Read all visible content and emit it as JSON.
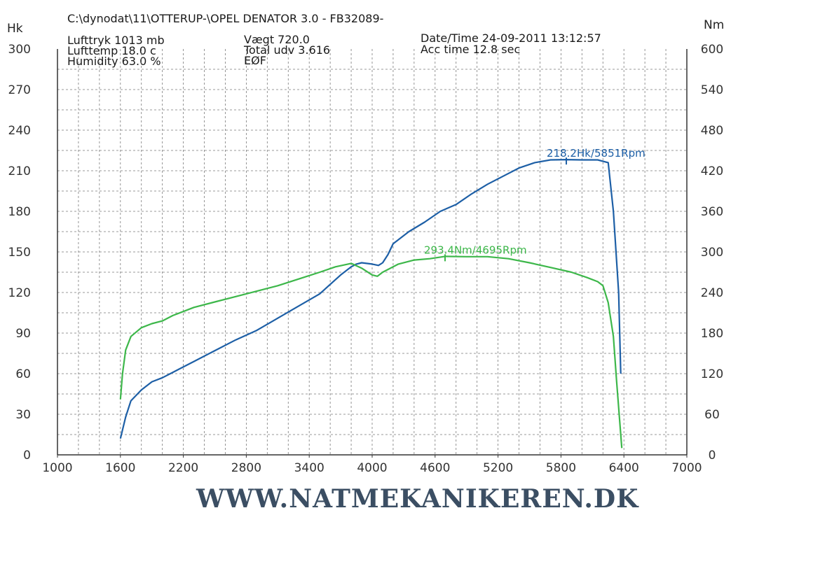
{
  "header": {
    "file_path": "C:\\dynodat\\11\\OTTERUP-\\OPEL DENATOR 3.0 - FB32089-",
    "lufttryk": "Lufttryk 1013 mb",
    "lufttemp": "Lufttemp 18.0 c",
    "humidity": "Humidity 63.0 %",
    "vaegt": "Vægt 720.0",
    "total_udv": "Total udv 3.616",
    "eof": "EØF",
    "datetime": "Date/Time 24-09-2011 13:12:57",
    "acc_time": "Acc time 12.8 sec"
  },
  "footer": {
    "website": "WWW.NATMEKANIKEREN.DK"
  },
  "chart_data": {
    "type": "line",
    "x_ticks": [
      1000,
      1600,
      2200,
      2800,
      3400,
      4000,
      4600,
      5200,
      5800,
      6400,
      7000
    ],
    "xlim": [
      1000,
      7000
    ],
    "grid": true,
    "y_left": {
      "label": "Hk",
      "ticks": [
        0,
        30,
        60,
        90,
        120,
        150,
        180,
        210,
        240,
        270,
        300
      ],
      "lim": [
        0,
        300
      ]
    },
    "y_right": {
      "label": "Nm",
      "ticks": [
        0,
        60,
        120,
        180,
        240,
        300,
        360,
        420,
        480,
        540,
        600
      ],
      "lim": [
        0,
        600
      ]
    },
    "series": [
      {
        "axis": "left",
        "color": "#1d5fa6",
        "peak_label": "218.2Hk/5851Rpm",
        "peak": {
          "x": 5851,
          "y": 218.2
        },
        "points": [
          [
            1600,
            12
          ],
          [
            1650,
            28
          ],
          [
            1700,
            40
          ],
          [
            1800,
            48
          ],
          [
            1900,
            54
          ],
          [
            2000,
            57
          ],
          [
            2100,
            61
          ],
          [
            2300,
            69
          ],
          [
            2500,
            77
          ],
          [
            2700,
            85
          ],
          [
            2900,
            92
          ],
          [
            3100,
            101
          ],
          [
            3300,
            110
          ],
          [
            3500,
            119
          ],
          [
            3600,
            126
          ],
          [
            3700,
            133
          ],
          [
            3800,
            139
          ],
          [
            3850,
            141
          ],
          [
            3900,
            142
          ],
          [
            4000,
            141
          ],
          [
            4060,
            140
          ],
          [
            4100,
            142
          ],
          [
            4150,
            148
          ],
          [
            4200,
            156
          ],
          [
            4350,
            165
          ],
          [
            4500,
            172
          ],
          [
            4650,
            180
          ],
          [
            4800,
            185
          ],
          [
            4950,
            193
          ],
          [
            5100,
            200
          ],
          [
            5250,
            206
          ],
          [
            5400,
            212
          ],
          [
            5550,
            216
          ],
          [
            5700,
            218
          ],
          [
            5851,
            218.2
          ],
          [
            6000,
            218
          ],
          [
            6150,
            218
          ],
          [
            6250,
            216
          ],
          [
            6300,
            180
          ],
          [
            6350,
            120
          ],
          [
            6370,
            60
          ]
        ]
      },
      {
        "axis": "right",
        "color": "#3db74a",
        "peak_label": "293.4Nm/4695Rpm",
        "peak": {
          "x": 4695,
          "y": 293.4
        },
        "points": [
          [
            1600,
            82
          ],
          [
            1620,
            120
          ],
          [
            1650,
            155
          ],
          [
            1700,
            175
          ],
          [
            1800,
            188
          ],
          [
            1900,
            194
          ],
          [
            2000,
            198
          ],
          [
            2100,
            206
          ],
          [
            2300,
            218
          ],
          [
            2500,
            226
          ],
          [
            2700,
            234
          ],
          [
            2900,
            242
          ],
          [
            3100,
            250
          ],
          [
            3300,
            260
          ],
          [
            3500,
            270
          ],
          [
            3650,
            278
          ],
          [
            3800,
            283
          ],
          [
            3900,
            276
          ],
          [
            4000,
            266
          ],
          [
            4050,
            264
          ],
          [
            4100,
            270
          ],
          [
            4250,
            282
          ],
          [
            4400,
            288
          ],
          [
            4550,
            290
          ],
          [
            4695,
            293.4
          ],
          [
            4900,
            293
          ],
          [
            5100,
            293
          ],
          [
            5300,
            290
          ],
          [
            5500,
            284
          ],
          [
            5700,
            277
          ],
          [
            5900,
            270
          ],
          [
            6050,
            262
          ],
          [
            6150,
            256
          ],
          [
            6200,
            250
          ],
          [
            6250,
            225
          ],
          [
            6300,
            175
          ],
          [
            6330,
            110
          ],
          [
            6360,
            50
          ],
          [
            6380,
            10
          ]
        ]
      }
    ]
  }
}
